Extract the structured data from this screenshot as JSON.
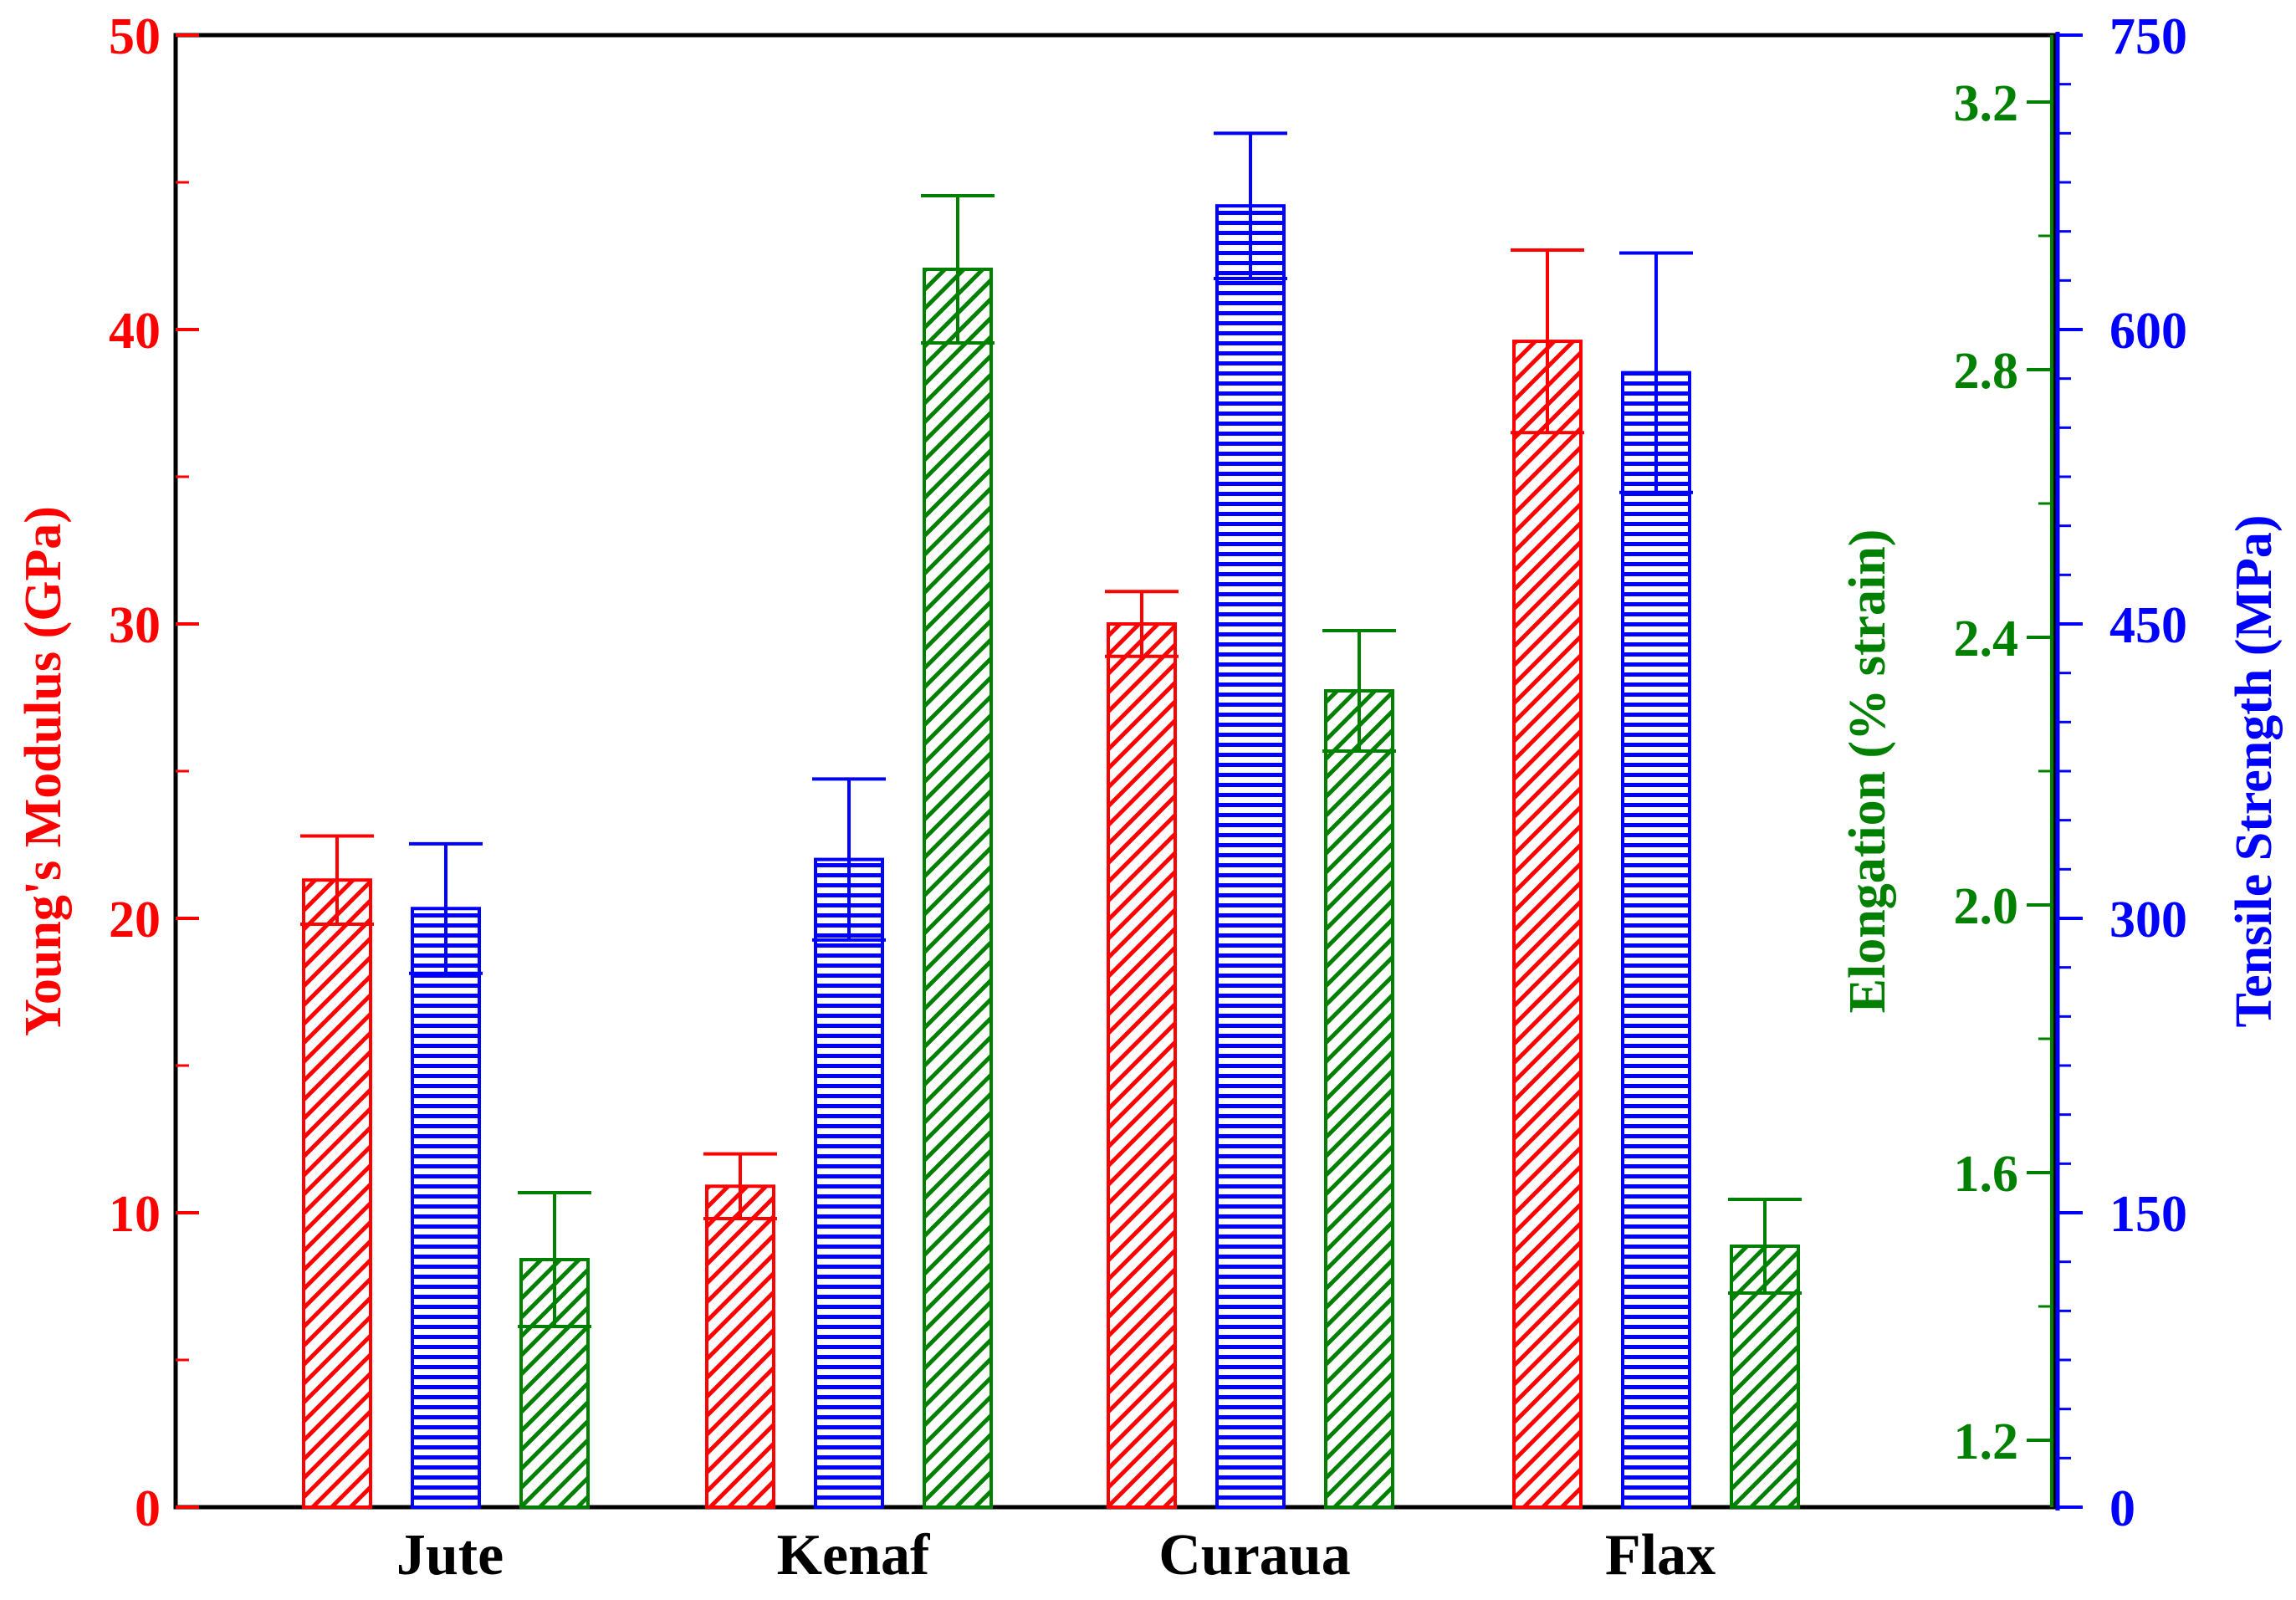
{
  "chart_data": {
    "type": "bar",
    "categories": [
      "Jute",
      "Kenaf",
      "Curaua",
      "Flax"
    ],
    "series": [
      {
        "name": "Young's Modulus",
        "axis": "left",
        "color": "#ff0000",
        "pattern": "diagonal-hatch",
        "values": [
          21.3,
          10.9,
          30.0,
          39.6
        ],
        "errors": [
          1.5,
          1.1,
          1.1,
          3.1
        ]
      },
      {
        "name": "Tensile Strength",
        "axis": "right",
        "color": "#0000ff",
        "pattern": "horizontal-lines",
        "values": [
          305,
          330,
          663,
          578
        ],
        "errors": [
          33,
          41,
          37,
          61
        ]
      },
      {
        "name": "Elongation",
        "axis": "middle",
        "color": "#008000",
        "pattern": "diagonal-hatch",
        "values": [
          1.47,
          2.95,
          2.32,
          1.49
        ],
        "errors": [
          0.1,
          0.11,
          0.09,
          0.07
        ]
      }
    ],
    "axes": {
      "left": {
        "label": "Young's Modulus (GPa)",
        "color": "#ff0000",
        "min": 0,
        "max": 50,
        "ticks": [
          "0",
          "10",
          "20",
          "30",
          "40",
          "50"
        ]
      },
      "middle": {
        "label": "Elongation (% strain)",
        "color": "#008000",
        "min": 1.1,
        "max": 3.3,
        "ticks": [
          "1.2",
          "1.6",
          "2.0",
          "2.4",
          "2.8",
          "3.2"
        ]
      },
      "right": {
        "label": "Tensile Strength (MPa)",
        "color": "#0000ff",
        "min": 0,
        "max": 750,
        "ticks": [
          "0",
          "150",
          "300",
          "450",
          "600",
          "750"
        ]
      }
    },
    "grid": false
  }
}
